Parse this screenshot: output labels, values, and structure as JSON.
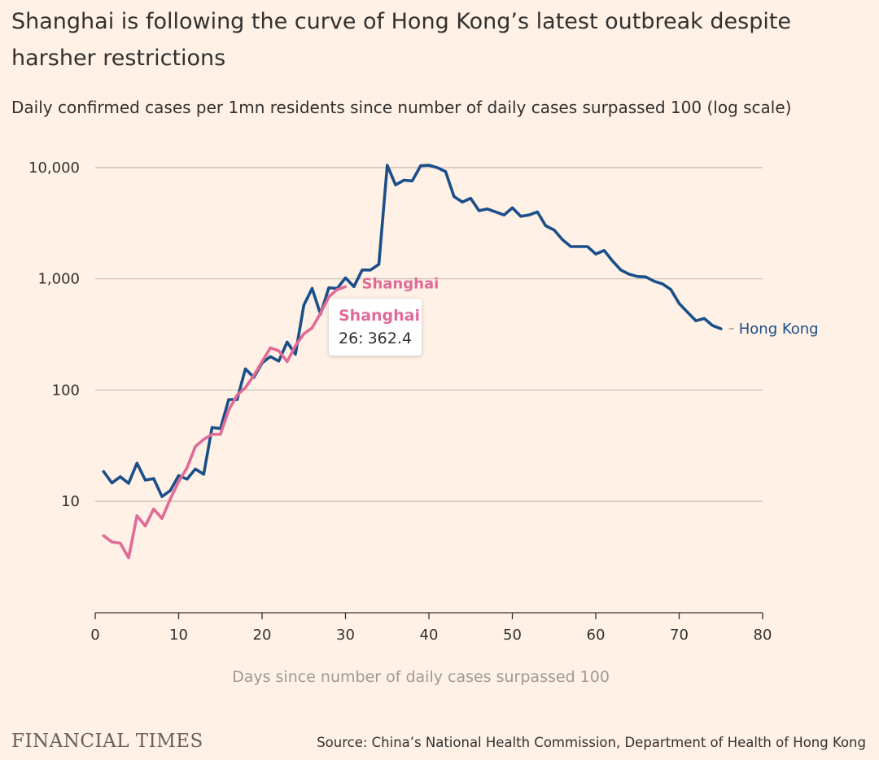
{
  "title": "Shanghai is following the curve of Hong Kong’s latest outbreak despite harsher restrictions",
  "subtitle": "Daily confirmed cases per 1mn residents since number of daily cases surpassed 100 (log scale)",
  "source": "Source: China’s National Health Commission, Department of Health of Hong Kong",
  "brand": "FINANCIAL TIMES",
  "tooltip": {
    "series": "Shanghai",
    "day": "26",
    "value": "362.4"
  },
  "colors": {
    "background": "#fff1e5",
    "hong_kong": "#1b4f8a",
    "shanghai": "#e16b98",
    "grid": "#c7bcb3",
    "text": "#33302e",
    "axis_title": "#9e9a97"
  },
  "chart_data": {
    "type": "line",
    "xlabel": "Days since number of daily cases surpassed 100",
    "ylabel": "",
    "y_scale": "log",
    "xlim": [
      0,
      80
    ],
    "ylim": [
      1,
      10000
    ],
    "x_ticks": [
      0,
      10,
      20,
      30,
      40,
      50,
      60,
      70,
      80
    ],
    "x_tick_labels": [
      "0",
      "10",
      "20",
      "30",
      "40",
      "50",
      "60",
      "70",
      "80"
    ],
    "y_ticks": [
      10,
      100,
      1000,
      10000
    ],
    "y_tick_labels": [
      "10",
      "100",
      "1,000",
      "10,000"
    ],
    "grid": "horizontal",
    "series": [
      {
        "name": "Hong Kong",
        "color": "#1b4f8a",
        "x": [
          1,
          2,
          3,
          4,
          5,
          6,
          7,
          8,
          9,
          10,
          11,
          12,
          13,
          14,
          15,
          16,
          17,
          18,
          19,
          20,
          21,
          22,
          23,
          24,
          25,
          26,
          27,
          28,
          29,
          30,
          31,
          32,
          33,
          34,
          35,
          36,
          37,
          38,
          39,
          40,
          41,
          42,
          43,
          44,
          45,
          46,
          47,
          48,
          49,
          50,
          51,
          52,
          53,
          54,
          55,
          56,
          57,
          58,
          59,
          60,
          61,
          62,
          63,
          64,
          65,
          66,
          67,
          68,
          69,
          70,
          71,
          72,
          73,
          74,
          75
        ],
        "values": [
          18.5,
          14.6,
          16.6,
          14.5,
          22,
          15.5,
          16,
          11,
          12.5,
          17,
          15.8,
          19.5,
          17.5,
          46,
          45,
          82,
          82,
          155,
          130,
          175,
          200,
          182,
          270,
          210,
          580,
          820,
          480,
          830,
          820,
          1020,
          850,
          1200,
          1200,
          1350,
          10500,
          7000,
          7700,
          7600,
          10400,
          10500,
          10000,
          9200,
          5500,
          4900,
          5300,
          4100,
          4250,
          4000,
          3750,
          4350,
          3650,
          3750,
          4000,
          3000,
          2750,
          2250,
          1950,
          1950,
          1950,
          1670,
          1800,
          1450,
          1200,
          1100,
          1050,
          1040,
          950,
          900,
          800,
          600,
          500,
          420,
          440,
          380,
          355
        ]
      },
      {
        "name": "Shanghai",
        "color": "#e16b98",
        "x": [
          1,
          2,
          3,
          4,
          5,
          6,
          7,
          8,
          9,
          10,
          11,
          12,
          13,
          14,
          15,
          16,
          17,
          18,
          19,
          20,
          21,
          22,
          23,
          24,
          25,
          26,
          27,
          28,
          29,
          30
        ],
        "values": [
          4.9,
          4.3,
          4.2,
          3.1,
          7.4,
          6,
          8.5,
          7,
          10.5,
          15,
          20,
          31,
          36,
          40,
          40,
          66,
          90,
          105,
          135,
          180,
          240,
          225,
          180,
          250,
          320,
          362.4,
          490,
          690,
          800,
          850
        ]
      }
    ],
    "end_labels": [
      "Shanghai",
      "Hong Kong"
    ]
  }
}
